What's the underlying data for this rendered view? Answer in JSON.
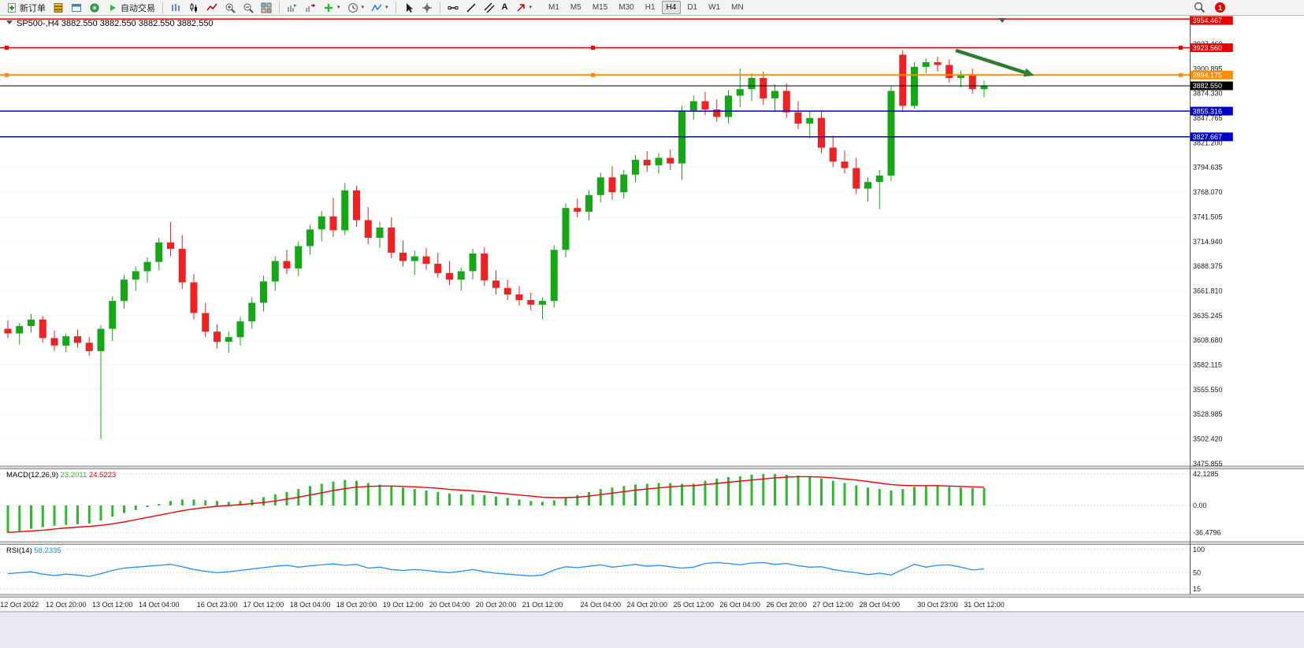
{
  "icons": {
    "caret": "▾",
    "letter_a": "A"
  },
  "toolbar": {
    "new_order": "新订单",
    "autotrade": "自动交易",
    "timeframes": [
      "M1",
      "M5",
      "M15",
      "M30",
      "H1",
      "H4",
      "D1",
      "W1",
      "MN"
    ],
    "active_timeframe": "H4",
    "notification_count": "1"
  },
  "chart_data": {
    "type": "candlestick",
    "title": {
      "symbol": "SP500-,H4",
      "ohlc": "3882.550 3882.550 3882.550 3882.550"
    },
    "candles": [
      [
        3621,
        3630,
        3611,
        3616
      ],
      [
        3616,
        3627,
        3604,
        3624
      ],
      [
        3624,
        3637,
        3617,
        3631
      ],
      [
        3631,
        3635,
        3606,
        3611
      ],
      [
        3611,
        3619,
        3597,
        3603
      ],
      [
        3603,
        3616,
        3596,
        3613
      ],
      [
        3613,
        3620,
        3601,
        3606
      ],
      [
        3606,
        3612,
        3592,
        3597
      ],
      [
        3597,
        3625,
        3502.42,
        3621
      ],
      [
        3621,
        3656,
        3608,
        3651
      ],
      [
        3651,
        3679,
        3643,
        3674
      ],
      [
        3674,
        3688,
        3662,
        3683
      ],
      [
        3683,
        3698,
        3671,
        3693
      ],
      [
        3693,
        3719,
        3684,
        3714
      ],
      [
        3714,
        3736,
        3699,
        3707
      ],
      [
        3707,
        3722,
        3664,
        3671
      ],
      [
        3671,
        3680,
        3631,
        3638
      ],
      [
        3638,
        3649,
        3612,
        3618
      ],
      [
        3618,
        3626,
        3600,
        3607
      ],
      [
        3607,
        3618,
        3595,
        3612
      ],
      [
        3612,
        3634,
        3603,
        3629
      ],
      [
        3629,
        3655,
        3621,
        3649
      ],
      [
        3649,
        3678,
        3640,
        3672
      ],
      [
        3672,
        3699,
        3662,
        3694
      ],
      [
        3694,
        3706,
        3680,
        3686
      ],
      [
        3686,
        3715,
        3678,
        3710
      ],
      [
        3710,
        3733,
        3701,
        3728
      ],
      [
        3728,
        3748,
        3715,
        3742
      ],
      [
        3742,
        3762,
        3720,
        3727
      ],
      [
        3727,
        3778,
        3722,
        3770
      ],
      [
        3770,
        3775,
        3731,
        3738
      ],
      [
        3738,
        3752,
        3712,
        3719
      ],
      [
        3719,
        3736,
        3708,
        3730
      ],
      [
        3730,
        3741,
        3697,
        3703
      ],
      [
        3703,
        3716,
        3688,
        3694
      ],
      [
        3694,
        3705,
        3679,
        3699
      ],
      [
        3699,
        3708,
        3685,
        3691
      ],
      [
        3691,
        3703,
        3676,
        3681
      ],
      [
        3681,
        3694,
        3668,
        3674
      ],
      [
        3674,
        3687,
        3662,
        3683
      ],
      [
        3683,
        3707,
        3674,
        3702
      ],
      [
        3702,
        3709,
        3667,
        3673
      ],
      [
        3673,
        3684,
        3658,
        3665
      ],
      [
        3665,
        3674,
        3652,
        3658
      ],
      [
        3658,
        3667,
        3646,
        3652
      ],
      [
        3652,
        3660,
        3641,
        3647
      ],
      [
        3647,
        3655,
        3631,
        3651
      ],
      [
        3651,
        3711,
        3644,
        3706
      ],
      [
        3706,
        3756,
        3698,
        3751
      ],
      [
        3751,
        3761,
        3741,
        3747
      ],
      [
        3747,
        3770,
        3738,
        3765
      ],
      [
        3765,
        3789,
        3757,
        3784
      ],
      [
        3784,
        3796,
        3760,
        3768
      ],
      [
        3768,
        3792,
        3761,
        3787
      ],
      [
        3787,
        3808,
        3779,
        3803
      ],
      [
        3803,
        3812,
        3790,
        3797
      ],
      [
        3797,
        3810,
        3788,
        3805
      ],
      [
        3805,
        3814,
        3792,
        3799
      ],
      [
        3799,
        3861,
        3781,
        3856
      ],
      [
        3856,
        3872,
        3846,
        3866
      ],
      [
        3866,
        3876,
        3851,
        3857
      ],
      [
        3857,
        3868,
        3844,
        3849
      ],
      [
        3849,
        3878,
        3842,
        3872
      ],
      [
        3872,
        3901,
        3860,
        3879
      ],
      [
        3879,
        3896,
        3866,
        3891
      ],
      [
        3891,
        3898,
        3862,
        3869
      ],
      [
        3869,
        3884,
        3855,
        3877
      ],
      [
        3877,
        3885,
        3848,
        3854
      ],
      [
        3854,
        3866,
        3836,
        3842
      ],
      [
        3842,
        3855,
        3826,
        3848
      ],
      [
        3848,
        3856,
        3810,
        3816
      ],
      [
        3816,
        3829,
        3795,
        3801
      ],
      [
        3801,
        3813,
        3788,
        3794
      ],
      [
        3794,
        3805,
        3766,
        3772
      ],
      [
        3772,
        3784,
        3758,
        3779
      ],
      [
        3779,
        3792,
        3750,
        3786
      ],
      [
        3786,
        3882,
        3780,
        3877
      ],
      [
        3916,
        3921,
        3855,
        3861
      ],
      [
        3861,
        3908,
        3858,
        3903
      ],
      [
        3903,
        3912,
        3896,
        3908
      ],
      [
        3908,
        3914,
        3898,
        3905
      ],
      [
        3905,
        3911,
        3886,
        3891
      ],
      [
        3891,
        3899,
        3881,
        3895
      ],
      [
        3895,
        3901,
        3874,
        3879
      ],
      [
        3879,
        3888,
        3870,
        3882.55
      ]
    ],
    "time_labels": [
      {
        "i": 1,
        "t": "12 Oct 2022"
      },
      {
        "i": 5,
        "t": "12 Oct 20:00"
      },
      {
        "i": 9,
        "t": "13 Oct 12:00"
      },
      {
        "i": 13,
        "t": "14 Oct 04:00"
      },
      {
        "i": 18,
        "t": "16 Oct 23:00"
      },
      {
        "i": 22,
        "t": "17 Oct 12:00"
      },
      {
        "i": 26,
        "t": "18 Oct 04:00"
      },
      {
        "i": 30,
        "t": "18 Oct 20:00"
      },
      {
        "i": 34,
        "t": "19 Oct 12:00"
      },
      {
        "i": 38,
        "t": "20 Oct 04:00"
      },
      {
        "i": 42,
        "t": "20 Oct 20:00"
      },
      {
        "i": 46,
        "t": "21 Oct 12:00"
      },
      {
        "i": 51,
        "t": "24 Oct 04:00"
      },
      {
        "i": 55,
        "t": "24 Oct 20:00"
      },
      {
        "i": 59,
        "t": "25 Oct 12:00"
      },
      {
        "i": 63,
        "t": "26 Oct 04:00"
      },
      {
        "i": 67,
        "t": "26 Oct 20:00"
      },
      {
        "i": 71,
        "t": "27 Oct 12:00"
      },
      {
        "i": 75,
        "t": "28 Oct 04:00"
      },
      {
        "i": 80,
        "t": "30 Oct 23:00"
      },
      {
        "i": 84,
        "t": "31 Oct 12:00"
      }
    ],
    "price_axis": {
      "ticks": [
        "3927.460",
        "3900.895",
        "3874.330",
        "3847.765",
        "3821.200",
        "3794.635",
        "3768.070",
        "3741.505",
        "3714.940",
        "3688.375",
        "3661.810",
        "3635.245",
        "3608.680",
        "3582.115",
        "3555.550",
        "3528.985",
        "3502.420",
        "3475.855"
      ]
    },
    "price_markers": [
      {
        "label": "3954.467",
        "value": 3954.467,
        "color": "#ee0000",
        "line_width": 1.5,
        "handles": false
      },
      {
        "label": "3923.560",
        "value": 3923.56,
        "color": "#ee0000",
        "line_width": 1.5,
        "handles": true
      },
      {
        "label": "3894.175",
        "value": 3894.175,
        "color": "#ff8c00",
        "line_width": 2,
        "handles": true
      },
      {
        "label": "3882.550",
        "value": 3882.55,
        "color": "#000000",
        "line_width": 1,
        "handles": false
      },
      {
        "label": "3855.316",
        "value": 3855.316,
        "color": "#0000cd",
        "line_width": 1.5,
        "handles": false
      },
      {
        "label": "3827.667",
        "value": 3827.667,
        "color": "#0000cd",
        "line_width": 1.5,
        "handles": false
      }
    ],
    "current_price": 3882.55,
    "macd": {
      "name": "MACD(12,26,9)",
      "value": "23.2011",
      "signal_value": "24.5223",
      "scale": [
        "42.1285",
        "0.00",
        "-36.4796"
      ],
      "values": [
        -36.48,
        -34,
        -31,
        -29,
        -27,
        -26,
        -25,
        -24,
        -20,
        -15,
        -10,
        -6,
        -2,
        2,
        6,
        8,
        8,
        7,
        6,
        5,
        6,
        8,
        11,
        15,
        18,
        22,
        26,
        29,
        32,
        34,
        33,
        30,
        28,
        26,
        24,
        22,
        20,
        18,
        16,
        15,
        15,
        14,
        12,
        10,
        8,
        6,
        5,
        7,
        11,
        14,
        18,
        22,
        24,
        26,
        28,
        29,
        30,
        30,
        29,
        29,
        33,
        36,
        38,
        39,
        41,
        42.13,
        42,
        41,
        40,
        38,
        36,
        33,
        30,
        27,
        24,
        22,
        20,
        22,
        25,
        27,
        26,
        25,
        24,
        23.5,
        23.2
      ],
      "signal": [
        -36,
        -35,
        -34,
        -33,
        -31.5,
        -30,
        -29,
        -28,
        -26.5,
        -24.5,
        -22,
        -19,
        -16,
        -13,
        -10,
        -7,
        -4.5,
        -2.5,
        -1,
        0,
        1,
        2.5,
        4,
        6,
        8.5,
        11,
        14,
        17,
        20,
        22.5,
        24.5,
        25.5,
        26,
        26,
        25.5,
        25,
        24,
        23,
        21.5,
        20.5,
        19.5,
        18.5,
        17,
        15.5,
        14,
        12.5,
        11,
        10.5,
        10.5,
        11,
        12.5,
        14.5,
        16.5,
        18.5,
        20.5,
        22,
        23.5,
        25,
        26,
        26.5,
        28,
        29.5,
        31,
        32.5,
        34,
        35.5,
        37,
        38,
        38.5,
        38.5,
        38,
        37,
        35.5,
        34,
        32,
        30,
        28,
        27,
        26.5,
        26.5,
        26.5,
        26,
        25.5,
        25,
        24.52
      ]
    },
    "rsi": {
      "name": "RSI(14)",
      "value": "58.2335",
      "levels": [
        "100",
        "50",
        "15"
      ],
      "values": [
        48,
        50,
        52,
        47,
        44,
        47,
        45,
        42,
        48,
        55,
        60,
        62,
        64,
        66,
        68,
        63,
        57,
        53,
        50,
        52,
        55,
        58,
        61,
        64,
        66,
        62,
        65,
        67,
        69,
        66,
        68,
        60,
        62,
        57,
        55,
        57,
        55,
        52,
        50,
        53,
        57,
        52,
        49,
        47,
        45,
        43,
        45,
        56,
        63,
        61,
        64,
        67,
        62,
        65,
        68,
        64,
        66,
        63,
        60,
        62,
        70,
        72,
        70,
        67,
        71,
        72,
        68,
        70,
        65,
        62,
        63,
        57,
        53,
        50,
        46,
        49,
        45,
        57,
        68,
        62,
        66,
        67,
        62,
        56,
        58.23
      ]
    },
    "annotation_arrow": {
      "from": [
        1213,
        64
      ],
      "to": [
        1313,
        96
      ],
      "color": "#2e7d32"
    }
  }
}
